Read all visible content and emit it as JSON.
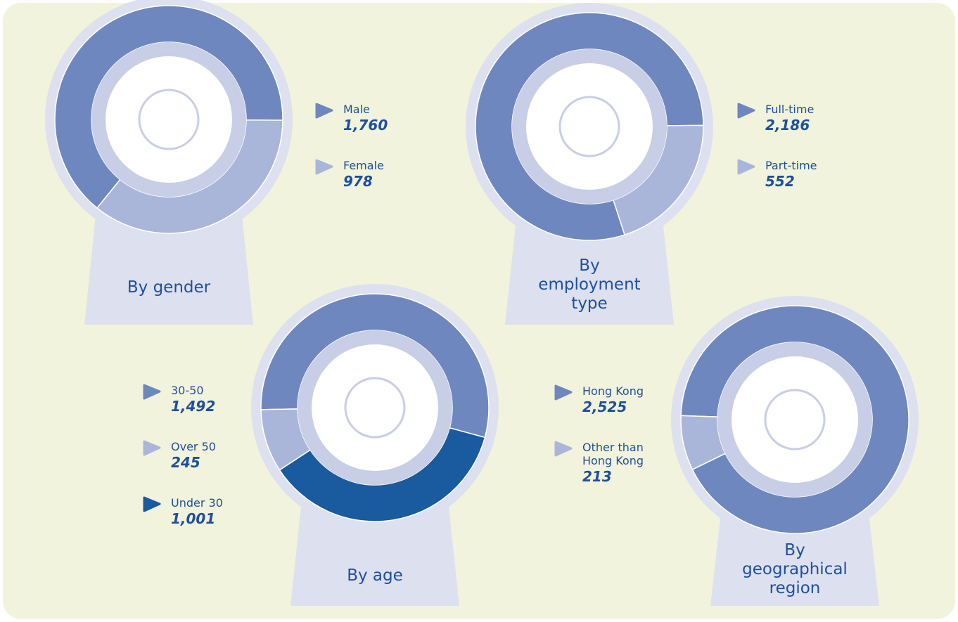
{
  "chart_data": [
    {
      "type": "pie",
      "title": "By gender",
      "categories": [
        "Male",
        "Female"
      ],
      "values": [
        1760,
        978
      ],
      "value_labels": [
        "1,760",
        "978"
      ],
      "colors": [
        "#6e87bf",
        "#a9b6d9"
      ]
    },
    {
      "type": "pie",
      "title": "By employment type",
      "categories": [
        "Full-time",
        "Part-time"
      ],
      "values": [
        2186,
        552
      ],
      "value_labels": [
        "2,186",
        "552"
      ],
      "colors": [
        "#6e87bf",
        "#a9b6d9"
      ]
    },
    {
      "type": "pie",
      "title": "By age",
      "categories": [
        "30-50",
        "Over 50",
        "Under 30"
      ],
      "values": [
        1492,
        245,
        1001
      ],
      "value_labels": [
        "1,492",
        "245",
        "1,001"
      ],
      "colors": [
        "#6e87bf",
        "#a9b6d9",
        "#1a5a9e"
      ]
    },
    {
      "type": "pie",
      "title": "By geographical region",
      "categories": [
        "Hong Kong",
        "Other than Hong Kong"
      ],
      "values": [
        2525,
        213
      ],
      "value_labels": [
        "2,525",
        "213"
      ],
      "colors": [
        "#6e87bf",
        "#a9b6d9"
      ]
    }
  ]
}
